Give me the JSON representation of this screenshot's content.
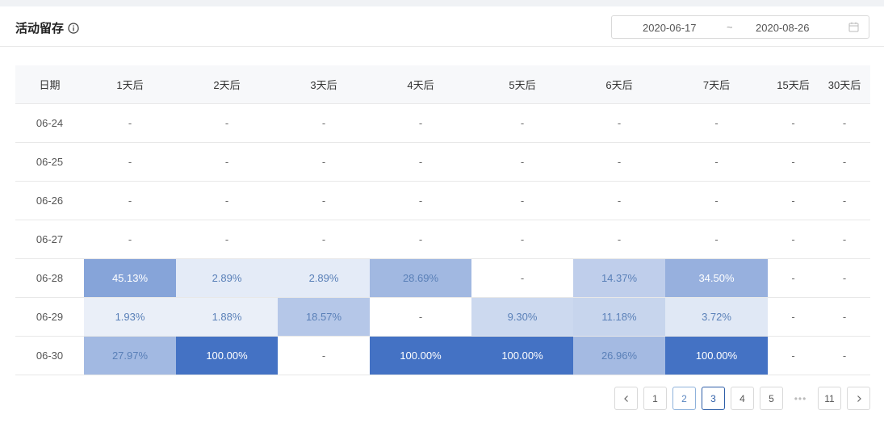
{
  "header": {
    "title": "活动留存",
    "date_start": "2020-06-17",
    "date_sep": "~",
    "date_end": "2020-08-26"
  },
  "table": {
    "columns": [
      "日期",
      "1天后",
      "2天后",
      "3天后",
      "4天后",
      "5天后",
      "6天后",
      "7天后",
      "15天后",
      "30天后"
    ],
    "rows": [
      {
        "date": "06-24",
        "cells": [
          "-",
          "-",
          "-",
          "-",
          "-",
          "-",
          "-",
          "-",
          "-"
        ]
      },
      {
        "date": "06-25",
        "cells": [
          "-",
          "-",
          "-",
          "-",
          "-",
          "-",
          "-",
          "-",
          "-"
        ]
      },
      {
        "date": "06-26",
        "cells": [
          "-",
          "-",
          "-",
          "-",
          "-",
          "-",
          "-",
          "-",
          "-"
        ]
      },
      {
        "date": "06-27",
        "cells": [
          "-",
          "-",
          "-",
          "-",
          "-",
          "-",
          "-",
          "-",
          "-"
        ]
      },
      {
        "date": "06-28",
        "cells": [
          "45.13%",
          "2.89%",
          "2.89%",
          "28.69%",
          "-",
          "14.37%",
          "34.50%",
          "-",
          "-"
        ]
      },
      {
        "date": "06-29",
        "cells": [
          "1.93%",
          "1.88%",
          "18.57%",
          "-",
          "9.30%",
          "11.18%",
          "3.72%",
          "-",
          "-"
        ]
      },
      {
        "date": "06-30",
        "cells": [
          "27.97%",
          "100.00%",
          "-",
          "100.00%",
          "100.00%",
          "26.96%",
          "100.00%",
          "-",
          "-"
        ]
      }
    ]
  },
  "heat_colors": {
    "base": "#ffffff",
    "full": "#4472c4",
    "text_light": "#ffffff",
    "text_dark": "#5a80b8",
    "text_empty": "#666666"
  },
  "pagination": {
    "prev_icon": "chevron-left-icon",
    "next_icon": "chevron-right-icon",
    "pages": [
      "1",
      "2",
      "3",
      "4",
      "5"
    ],
    "visited_page": "2",
    "current_page": "3",
    "ellipsis": "•••",
    "last_page": "11"
  }
}
